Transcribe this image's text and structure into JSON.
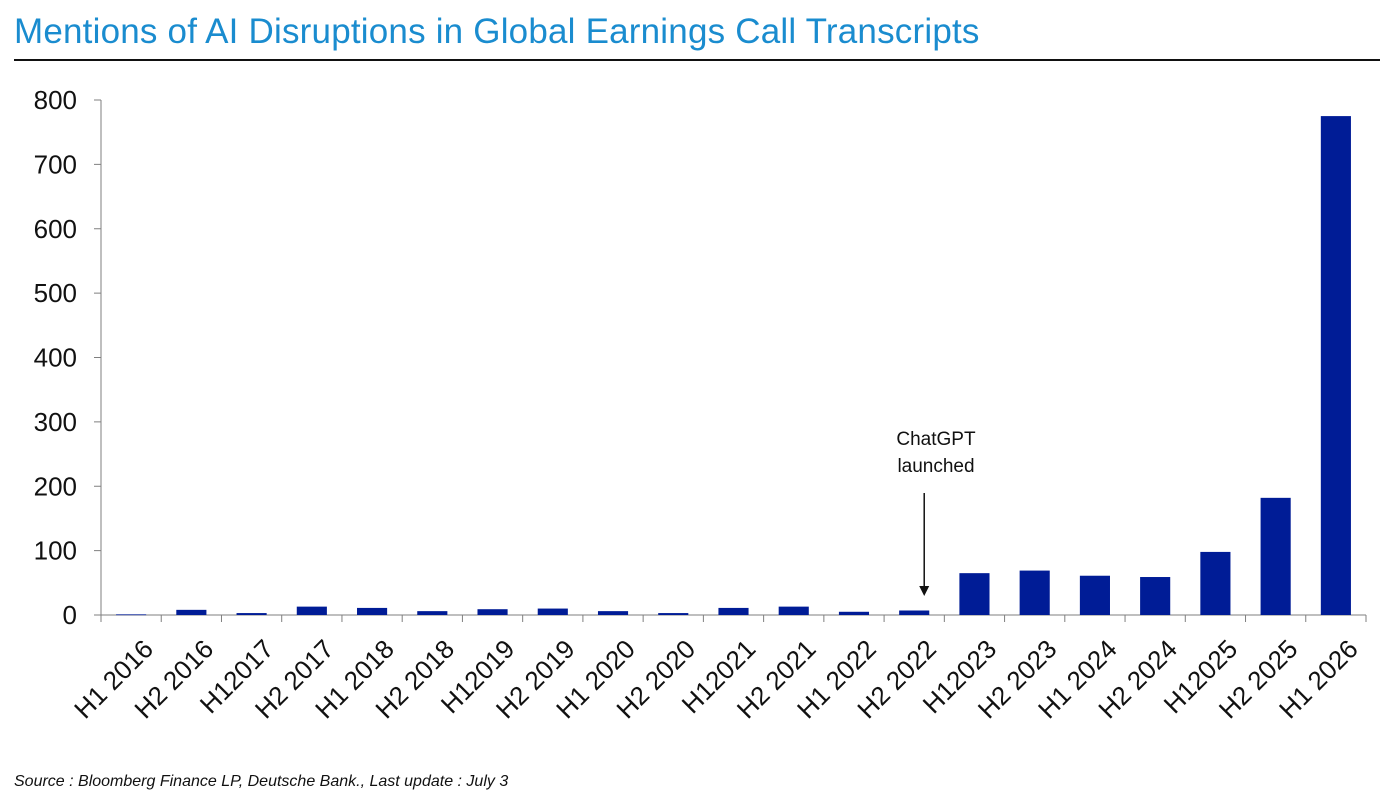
{
  "header": {
    "title": "Mentions of AI Disruptions in Global Earnings Call Transcripts"
  },
  "footer": {
    "source": "Source : Bloomberg Finance LP, Deutsche Bank., Last update : July 3"
  },
  "annotation": {
    "line1": "ChatGPT",
    "line2": "launched",
    "target_category": "H2 2022"
  },
  "colors": {
    "bar": "#001c96",
    "title": "#1a8ccf",
    "axis": "#7f7f7f"
  },
  "chart_data": {
    "type": "bar",
    "title": "Mentions of AI Disruptions in Global Earnings Call Transcripts",
    "xlabel": "",
    "ylabel": "",
    "ylim": [
      0,
      800
    ],
    "yticks": [
      0,
      100,
      200,
      300,
      400,
      500,
      600,
      700,
      800
    ],
    "grid": false,
    "legend": "none",
    "categories": [
      "H1 2016",
      "H2 2016",
      "H12017",
      "H2 2017",
      "H1 2018",
      "H2 2018",
      "H12019",
      "H2 2019",
      "H1 2020",
      "H2 2020",
      "H12021",
      "H2 2021",
      "H1 2022",
      "H2 2022",
      "H12023",
      "H2 2023",
      "H1 2024",
      "H2 2024",
      "H12025",
      "H2 2025",
      "H1 2026"
    ],
    "values": [
      1,
      8,
      3,
      13,
      11,
      6,
      9,
      10,
      6,
      3,
      11,
      13,
      5,
      7,
      65,
      69,
      61,
      59,
      98,
      182,
      775
    ]
  }
}
